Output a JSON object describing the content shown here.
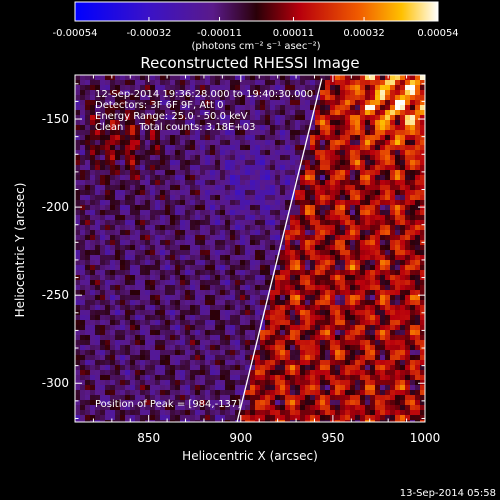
{
  "chart_data": {
    "type": "heatmap",
    "title": "Reconstructed RHESSI Image",
    "xlabel": "Heliocentric X (arcsec)",
    "ylabel": "Heliocentric Y (arcsec)",
    "xlim": [
      810,
      1000
    ],
    "ylim": [
      -322,
      -125
    ],
    "x_ticks": [
      "850",
      "900",
      "950",
      "1000"
    ],
    "y_ticks": [
      "-150",
      "-200",
      "-250",
      "-300"
    ],
    "colorbar": {
      "ticks": [
        "-0.00054",
        "-0.00032",
        "-0.00011",
        "0.00011",
        "0.00032",
        "0.00054"
      ],
      "range": [
        -0.00054,
        0.00054
      ],
      "units": "(photons cm⁻² s⁻¹ asec⁻²)"
    },
    "annotations": [
      "12-Sep-2014 19:36:28.000 to 19:40:30.000",
      "Detectors: 3F 6F 9F, Att 0",
      "Energy Range: 25.0 - 50.0 keV",
      "Clean     Total counts: 3.18E+03"
    ],
    "peak": "Position of Peak = [984,-137]",
    "limb": {
      "x_start": 898,
      "y_start": -322,
      "x_end": 944,
      "y_end": -127
    }
  },
  "footer": {
    "timestamp": "13-Sep-2014 05:58"
  }
}
